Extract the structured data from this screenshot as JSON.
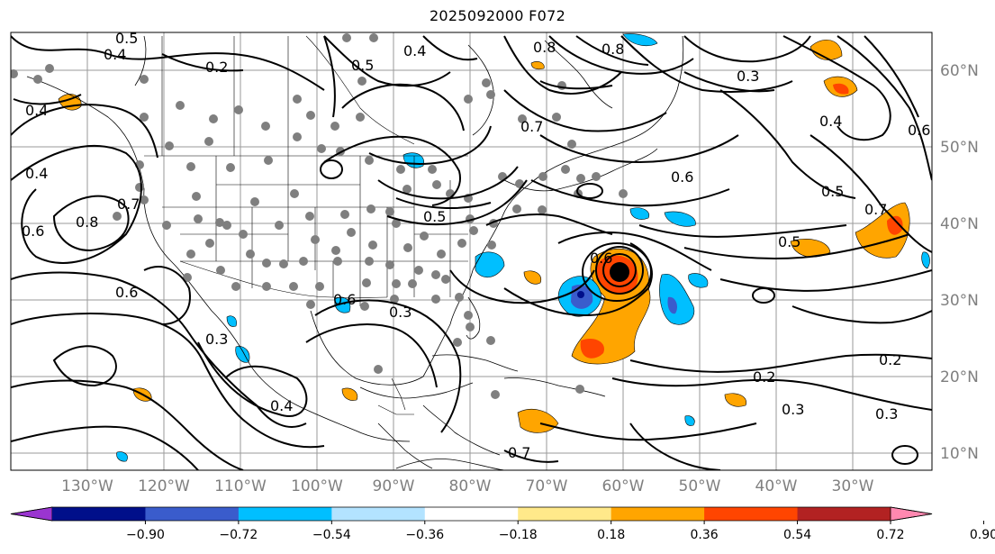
{
  "map": {
    "title": "2025092000 F072",
    "lon_labels": [
      "130°W",
      "120°W",
      "110°W",
      "100°W",
      "90°W",
      "80°W",
      "70°W",
      "60°W",
      "50°W",
      "40°W",
      "30°W"
    ],
    "lat_labels": [
      "60°N",
      "50°N",
      "40°N",
      "30°N",
      "20°N",
      "10°N"
    ],
    "contour_labels": [
      "0.5",
      "0.4",
      "0.2",
      "0.4",
      "0.4",
      "0.6",
      "0.8",
      "0.7",
      "0.6",
      "0.6",
      "0.3",
      "0.4",
      "0.3",
      "0.5",
      "0.5",
      "0.7",
      "0.6",
      "0.4",
      "0.6",
      "0.5",
      "0.7",
      "0.4",
      "0.5",
      "0.3",
      "0.2",
      "0.2",
      "0.3",
      "0.3",
      "0.6",
      "0.8",
      "0.8",
      "0.7"
    ]
  },
  "colorbar": {
    "tick_labels": [
      "−0.90",
      "−0.72",
      "−0.54",
      "−0.36",
      "−0.18",
      "0.18",
      "0.36",
      "0.54",
      "0.72",
      "0.90"
    ],
    "colors": [
      "#9a35d0",
      "#000f8a",
      "#3a5ccc",
      "#00bfff",
      "#b3e3ff",
      "#ffffff",
      "#ffe98a",
      "#ffa500",
      "#ff4500",
      "#b22222",
      "#ff88b0"
    ]
  }
}
